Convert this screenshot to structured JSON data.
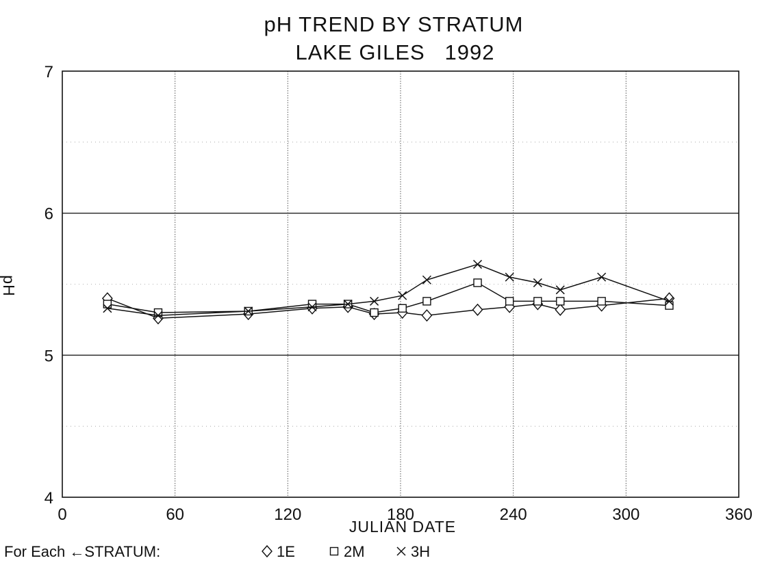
{
  "chart_data": {
    "type": "line",
    "title": "pH TREND BY STRATUM",
    "subtitle": "LAKE GILES   1992",
    "xlabel": "JULIAN DATE",
    "ylabel": "pH",
    "xlim": [
      0,
      360
    ],
    "ylim": [
      4,
      7
    ],
    "xticks": [
      "0",
      "60",
      "120",
      "180",
      "240",
      "300",
      "360"
    ],
    "yticks": [
      "4",
      "5",
      "6",
      "7"
    ],
    "grid": true,
    "legend_prefix": "For Each ←STRATUM:",
    "legend_placement": "bottom-left",
    "series": [
      {
        "name": "1E",
        "marker": "diamond",
        "x": [
          24,
          51,
          99,
          133,
          152,
          166,
          181,
          194,
          221,
          238,
          253,
          265,
          287,
          323
        ],
        "y": [
          5.4,
          5.26,
          5.29,
          5.33,
          5.34,
          5.29,
          5.3,
          5.28,
          5.32,
          5.34,
          5.36,
          5.32,
          5.35,
          5.4
        ]
      },
      {
        "name": "2M",
        "marker": "square",
        "x": [
          24,
          51,
          99,
          133,
          152,
          166,
          181,
          194,
          221,
          238,
          253,
          265,
          287,
          323
        ],
        "y": [
          5.36,
          5.3,
          5.31,
          5.36,
          5.36,
          5.3,
          5.33,
          5.38,
          5.51,
          5.38,
          5.38,
          5.38,
          5.38,
          5.35
        ]
      },
      {
        "name": "3H",
        "marker": "x",
        "x": [
          24,
          51,
          99,
          133,
          152,
          166,
          181,
          194,
          221,
          238,
          253,
          265,
          287,
          323
        ],
        "y": [
          5.33,
          5.28,
          5.31,
          5.34,
          5.36,
          5.38,
          5.42,
          5.53,
          5.64,
          5.55,
          5.51,
          5.46,
          5.55,
          5.38
        ]
      }
    ]
  }
}
